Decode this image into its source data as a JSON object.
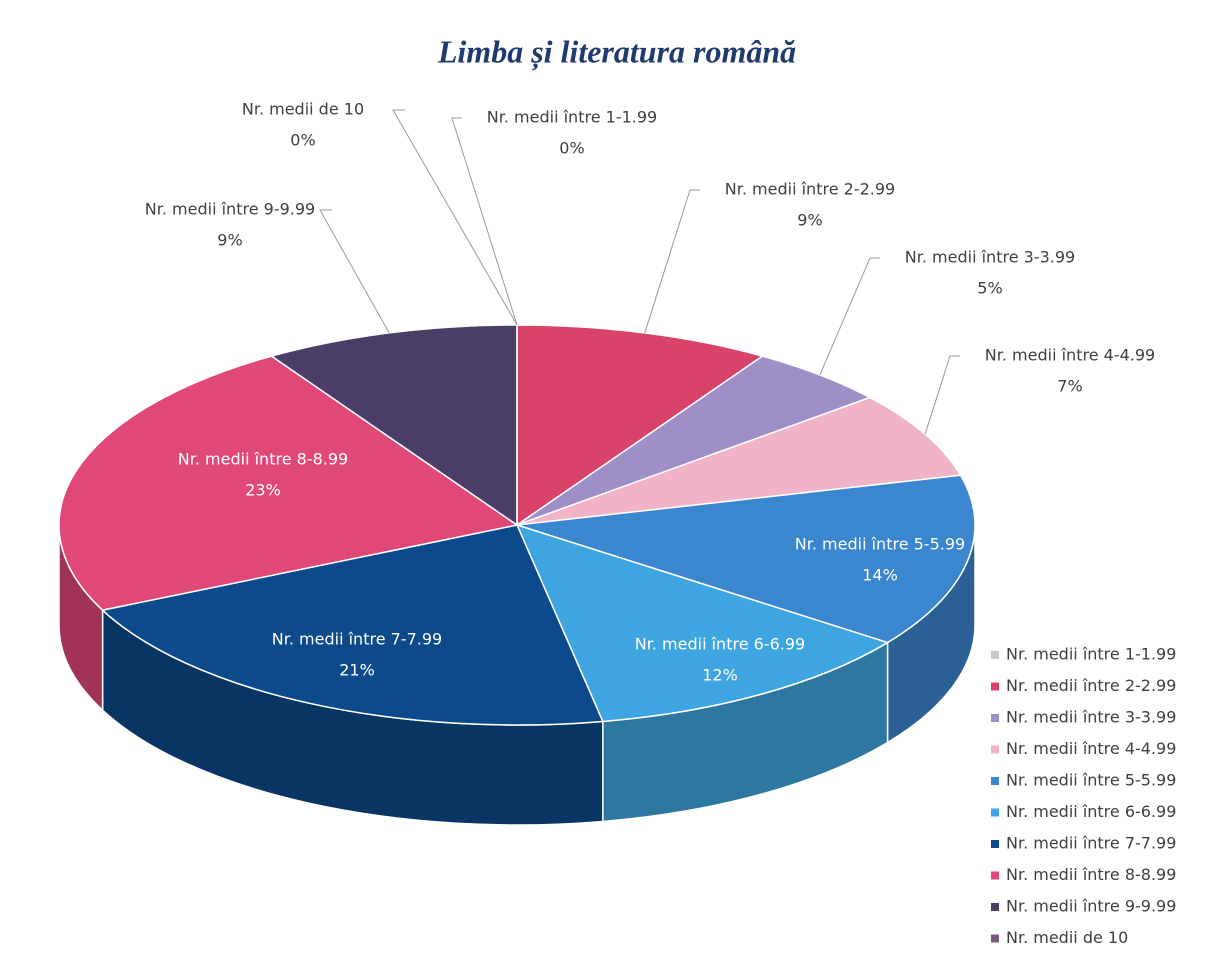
{
  "chart_data": {
    "type": "pie3d",
    "title": "Limba și literatura română",
    "categories": [
      "Nr. medii între 1-1.99",
      "Nr. medii între 2-2.99",
      "Nr. medii între 3-3.99",
      "Nr. medii între 4-4.99",
      "Nr. medii între 5-5.99",
      "Nr. medii între 6-6.99",
      "Nr. medii între 7-7.99",
      "Nr. medii între 8-8.99",
      "Nr. medii între 9-9.99",
      "Nr. medii de 10"
    ],
    "values": [
      0,
      9,
      5,
      7,
      14,
      12,
      21,
      23,
      9,
      0
    ],
    "value_labels": [
      "0%",
      "9%",
      "5%",
      "7%",
      "14%",
      "12%",
      "21%",
      "23%",
      "9%",
      "0%"
    ],
    "colors": [
      "#c9c9c9",
      "#d9436a",
      "#9e8fc7",
      "#f0b3c8",
      "#3a86cf",
      "#3fa5e0",
      "#0d4a8c",
      "#e04878",
      "#4a3e66",
      "#7a5a80"
    ],
    "legend": "right"
  }
}
